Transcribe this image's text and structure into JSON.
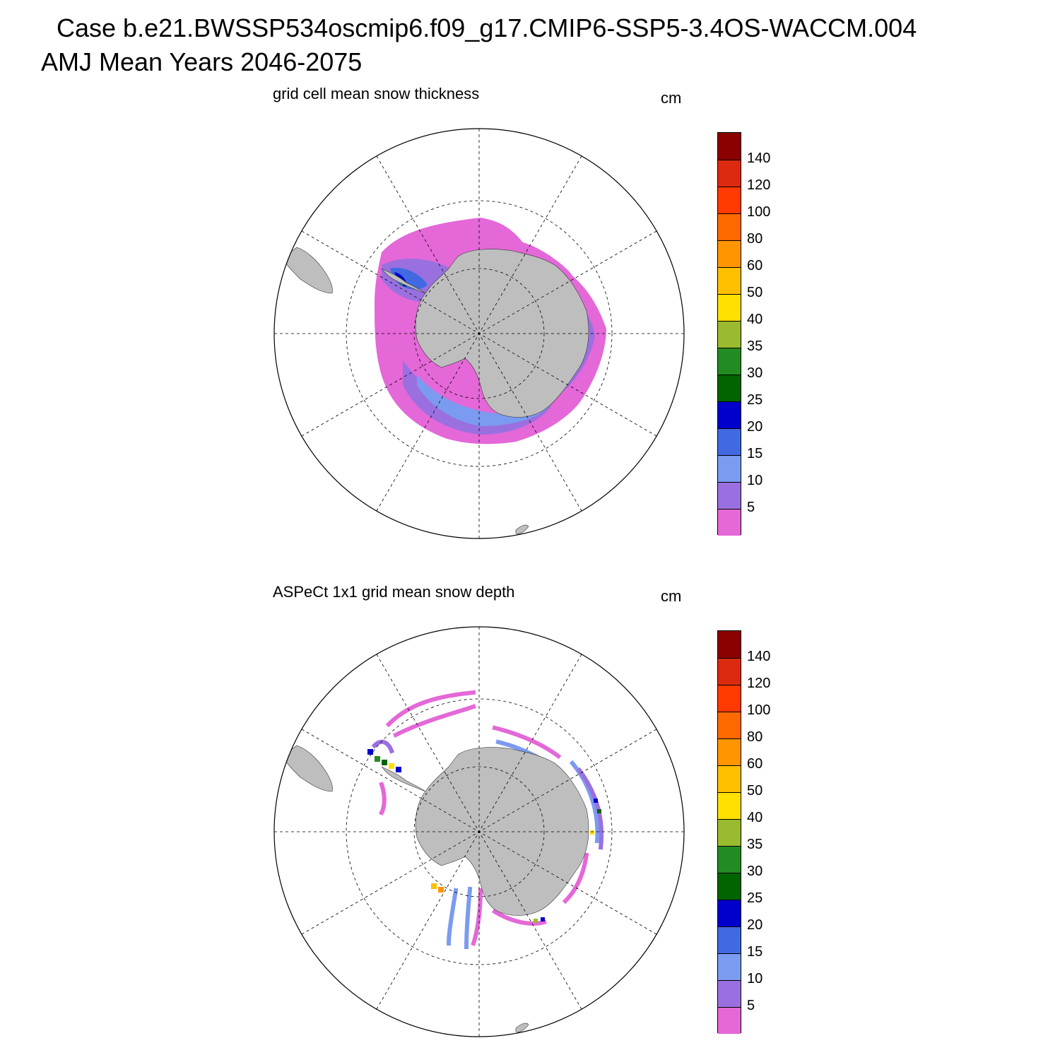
{
  "title": {
    "line1": "Case b.e21.BWSSP534oscmip6.f09_g17.CMIP6-SSP5-3.4OS-WACCM.004",
    "line2": "AMJ Mean   Years 2046-2075"
  },
  "panels": [
    {
      "title": "grid cell mean snow thickness",
      "unit": "cm"
    },
    {
      "title": "ASPeCt 1x1 grid mean snow depth",
      "unit": "cm"
    }
  ],
  "colorbar": {
    "colors": [
      "#e468d8",
      "#9a70e0",
      "#7b9bf0",
      "#4169e1",
      "#0000cd",
      "#006400",
      "#228b22",
      "#9abb30",
      "#ffe000",
      "#ffc000",
      "#ff9500",
      "#ff6a00",
      "#ff3a00",
      "#dc2a10",
      "#8b0000"
    ],
    "labels": [
      "5",
      "10",
      "15",
      "20",
      "25",
      "30",
      "35",
      "40",
      "50",
      "60",
      "80",
      "100",
      "120",
      "140"
    ]
  },
  "chart_data": {
    "type": "heatmap",
    "projection": "south polar stereographic",
    "levels_cm": [
      5,
      10,
      15,
      20,
      25,
      30,
      35,
      40,
      50,
      60,
      80,
      100,
      120,
      140
    ],
    "land_color": "#bebebe",
    "maps": [
      {
        "name": "grid cell mean snow thickness",
        "dominant_ranges_cm": [
          "<5",
          "5-10",
          "10-15",
          "15-20"
        ],
        "max_region": "Weddell Sea west (20-40 cm)"
      },
      {
        "name": "ASPeCt 1x1 grid mean snow depth",
        "dominant_ranges_cm": [
          "<5",
          "5-10",
          "10-15",
          "15-20",
          "20-25"
        ],
        "max_region": "Weddell Sea / Ross Sea spots (25-60 cm)"
      }
    ]
  }
}
